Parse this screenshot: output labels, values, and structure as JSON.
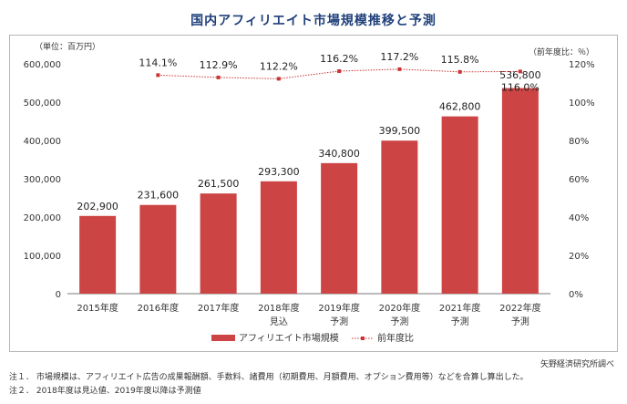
{
  "title": "国内アフィリエイト市場規模推移と予測",
  "left_unit": "（単位：百万円）",
  "right_unit": "（前年度比：％）",
  "source": "矢野経済研究所調べ",
  "notes": [
    "注１． 市場規模は、アフィリエイト広告の成果報酬額、手数料、諸費用（初期費用、月額費用、オプション費用等）などを合算し算出した。",
    "注２． 2018年度は見込値、2019年度以降は予測値"
  ],
  "colors": {
    "bar": "#cc4444",
    "line": "#cc3333",
    "title": "#1f3f7a"
  },
  "chart_data": {
    "type": "bar",
    "categories": [
      [
        "2015年度"
      ],
      [
        "2016年度"
      ],
      [
        "2017年度"
      ],
      [
        "2018年度",
        "見込"
      ],
      [
        "2019年度",
        "予測"
      ],
      [
        "2020年度",
        "予測"
      ],
      [
        "2021年度",
        "予測"
      ],
      [
        "2022年度",
        "予測"
      ]
    ],
    "series": [
      {
        "name": "アフィリエイト市場規模",
        "type": "bar",
        "axis": "left",
        "values": [
          202900,
          231600,
          261500,
          293300,
          340800,
          399500,
          462800,
          536800
        ],
        "labels": [
          "202,900",
          "231,600",
          "261,500",
          "293,300",
          "340,800",
          "399,500",
          "462,800",
          "536,800"
        ]
      },
      {
        "name": "前年度比",
        "type": "line",
        "axis": "right",
        "values": [
          null,
          114.1,
          112.9,
          112.2,
          116.2,
          117.2,
          115.8,
          116.0
        ],
        "labels": [
          "",
          "114.1%",
          "112.9%",
          "112.2%",
          "116.2%",
          "117.2%",
          "115.8%",
          "116.0%"
        ]
      }
    ],
    "y_left": {
      "min": 0,
      "max": 600000,
      "ticks": [
        "0",
        "100,000",
        "200,000",
        "300,000",
        "400,000",
        "500,000",
        "600,000"
      ]
    },
    "y_right": {
      "min": 0,
      "max": 120,
      "ticks": [
        "0%",
        "20%",
        "40%",
        "60%",
        "80%",
        "100%",
        "120%"
      ]
    },
    "grid": false,
    "legend_position": "bottom"
  }
}
